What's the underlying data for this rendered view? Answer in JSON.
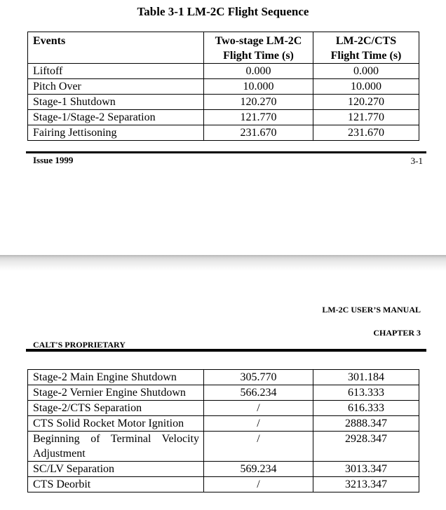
{
  "page1": {
    "title": "Table 3-1 LM-2C Flight Sequence",
    "footer": {
      "issue": "Issue 1999",
      "page_number": "3-1"
    }
  },
  "table1": {
    "columns": [
      {
        "line1": "Events",
        "line2": ""
      },
      {
        "line1": "Two-stage LM-2C",
        "line2": "Flight Time (s)"
      },
      {
        "line1": "LM-2C/CTS",
        "line2": "Flight Time (s)"
      }
    ],
    "rows": [
      {
        "event": "Liftoff",
        "two_stage": "0.000",
        "cts": "0.000"
      },
      {
        "event": "Pitch Over",
        "two_stage": "10.000",
        "cts": "10.000"
      },
      {
        "event": "Stage-1 Shutdown",
        "two_stage": "120.270",
        "cts": "120.270"
      },
      {
        "event": "Stage-1/Stage-2 Separation",
        "two_stage": "121.770",
        "cts": "121.770"
      },
      {
        "event": "Fairing Jettisoning",
        "two_stage": "231.670",
        "cts": "231.670"
      }
    ]
  },
  "page2": {
    "header": {
      "manual": "LM-2C USER’S MANUAL",
      "chapter": "CHAPTER 3",
      "proprietary": "CALT'S PROPRIETARY"
    }
  },
  "table2": {
    "rows": [
      {
        "event": "Stage-2 Main Engine Shutdown",
        "two_stage": "305.770",
        "cts": "301.184"
      },
      {
        "event": "Stage-2 Vernier Engine Shutdown",
        "two_stage": "566.234",
        "cts": "613.333"
      },
      {
        "event": "Stage-2/CTS Separation",
        "two_stage": "/",
        "cts": "616.333"
      },
      {
        "event": "CTS Solid Rocket Motor Ignition",
        "two_stage": "/",
        "cts": "2888.347"
      },
      {
        "event": "Beginning of Terminal Velocity Adjustment",
        "two_stage": "/",
        "cts": "2928.347"
      },
      {
        "event": "SC/LV Separation",
        "two_stage": "569.234",
        "cts": "3013.347"
      },
      {
        "event": "CTS Deorbit",
        "two_stage": "/",
        "cts": "3213.347"
      }
    ]
  }
}
